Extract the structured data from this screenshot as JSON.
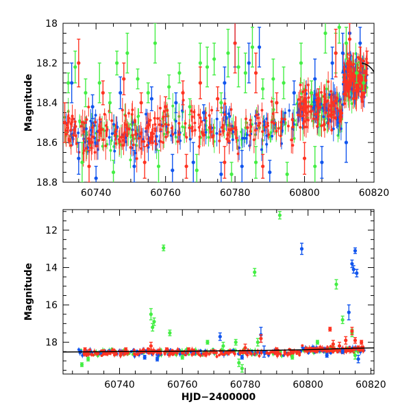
{
  "figure": {
    "x_axis_title": "HJD−2400000",
    "colors": {
      "green": "#44ee44",
      "blue": "#1155ee",
      "red": "#ff3322",
      "model": "#000000"
    }
  },
  "chart_data": [
    {
      "type": "scatter",
      "title": "",
      "xlabel": "",
      "ylabel": "Magnitude",
      "xlim": [
        60730.5,
        60820
      ],
      "ylim": [
        18.8,
        18.0
      ],
      "y_inverted": true,
      "grid": false,
      "x_ticks": [
        60740,
        60760,
        60780,
        60800,
        60820
      ],
      "x_tick_labels": [
        "60740",
        "60760",
        "60780",
        "60800",
        "60820"
      ],
      "y_ticks": [
        18.0,
        18.2,
        18.4,
        18.6,
        18.8
      ],
      "y_tick_labels": [
        "18",
        "18.2",
        "18.4",
        "18.6",
        "18.8"
      ],
      "baseline_segments": [
        {
          "x0": 60731,
          "x1": 60759,
          "y": 18.55
        },
        {
          "x0": 60759,
          "x1": 60798,
          "y": 18.52
        },
        {
          "x0": 60798,
          "x1": 60811,
          "y": 18.43
        },
        {
          "x0": 60811,
          "x1": 60818,
          "y": 18.28
        }
      ],
      "model_curve": [
        [
          60816.5,
          18.2
        ],
        [
          60817.5,
          18.205
        ],
        [
          60818.5,
          18.215
        ],
        [
          60819.3,
          18.228
        ],
        [
          60820,
          18.245
        ]
      ],
      "series": [
        {
          "color": "green",
          "points": [
            [
              60732,
              18.3,
              0.05
            ],
            [
              60734,
              18.22,
              0.08
            ],
            [
              60737,
              18.35,
              0.07
            ],
            [
              60741,
              18.3,
              0.1
            ],
            [
              60744,
              18.4,
              0.05
            ],
            [
              60746,
              18.2,
              0.06
            ],
            [
              60749,
              18.15,
              0.1
            ],
            [
              60752,
              18.28,
              0.05
            ],
            [
              60755,
              18.35,
              0.05
            ],
            [
              60757,
              18.1,
              0.1
            ],
            [
              60761,
              18.32,
              0.06
            ],
            [
              60764,
              18.25,
              0.05
            ],
            [
              60767,
              18.42,
              0.04
            ],
            [
              60770,
              18.2,
              0.1
            ],
            [
              60772,
              18.22,
              0.1
            ],
            [
              60774,
              18.18,
              0.08
            ],
            [
              60776,
              18.4,
              0.05
            ],
            [
              60778,
              18.15,
              0.12
            ],
            [
              60781,
              18.22,
              0.1
            ],
            [
              60783,
              18.25,
              0.1
            ],
            [
              60785,
              18.12,
              0.1
            ],
            [
              60788,
              18.33,
              0.05
            ],
            [
              60791,
              18.28,
              0.1
            ],
            [
              60794,
              18.3,
              0.08
            ],
            [
              60799,
              18.2,
              0.1
            ],
            [
              60802,
              18.35,
              0.06
            ],
            [
              60806,
              18.05,
              0.1
            ],
            [
              60809,
              18.15,
              0.1
            ],
            [
              60810,
              18.02,
              0.08
            ],
            [
              60812,
              18.1,
              0.08
            ],
            [
              60815,
              18.25,
              0.05
            ],
            [
              60817,
              18.3,
              0.04
            ],
            [
              60736,
              18.7,
              0.1
            ],
            [
              60745,
              18.75,
              0.06
            ],
            [
              60758,
              18.72,
              0.08
            ],
            [
              60769,
              18.74,
              0.08
            ],
            [
              60779,
              18.76,
              0.06
            ],
            [
              60786,
              18.7,
              0.08
            ],
            [
              60795,
              18.76,
              0.06
            ],
            [
              60803,
              18.72,
              0.1
            ]
          ]
        },
        {
          "color": "blue",
          "points": [
            [
              60733,
              18.3,
              0.1
            ],
            [
              60739,
              18.42,
              0.06
            ],
            [
              60747,
              18.35,
              0.08
            ],
            [
              60756,
              18.38,
              0.06
            ],
            [
              60763,
              18.4,
              0.05
            ],
            [
              60771,
              18.45,
              0.04
            ],
            [
              60777,
              18.3,
              0.08
            ],
            [
              60780,
              18.1,
              0.12
            ],
            [
              60784,
              18.2,
              0.1
            ],
            [
              60787,
              18.12,
              0.1
            ],
            [
              60797,
              18.35,
              0.06
            ],
            [
              60803,
              18.28,
              0.1
            ],
            [
              60808,
              18.2,
              0.08
            ],
            [
              60811,
              18.15,
              0.1
            ],
            [
              60813,
              18.05,
              0.1
            ],
            [
              60816,
              18.1,
              0.08
            ],
            [
              60735,
              18.68,
              0.08
            ],
            [
              60740,
              18.78,
              0.06
            ],
            [
              60751,
              18.72,
              0.08
            ],
            [
              60762,
              18.74,
              0.08
            ],
            [
              60768,
              18.7,
              0.1
            ],
            [
              60776,
              18.76,
              0.06
            ],
            [
              60782,
              18.72,
              0.08
            ],
            [
              60790,
              18.75,
              0.06
            ],
            [
              60805,
              18.7,
              0.08
            ],
            [
              60812,
              18.6,
              0.1
            ]
          ]
        },
        {
          "color": "red",
          "points": [
            [
              60731,
              18.5,
              0.1
            ],
            [
              60735,
              18.2,
              0.12
            ],
            [
              60742,
              18.35,
              0.06
            ],
            [
              60748,
              18.28,
              0.08
            ],
            [
              60753,
              18.4,
              0.05
            ],
            [
              60760,
              18.42,
              0.05
            ],
            [
              60765,
              18.35,
              0.06
            ],
            [
              60770,
              18.3,
              0.08
            ],
            [
              60775,
              18.38,
              0.06
            ],
            [
              60780,
              18.1,
              0.15
            ],
            [
              60786,
              18.25,
              0.1
            ],
            [
              60792,
              18.4,
              0.05
            ],
            [
              60799,
              18.42,
              0.05
            ],
            [
              60804,
              18.38,
              0.05
            ],
            [
              60809,
              18.15,
              0.12
            ],
            [
              60813,
              18.08,
              0.08
            ],
            [
              60816,
              18.18,
              0.06
            ],
            [
              60818,
              18.2,
              0.06
            ],
            [
              60738,
              18.72,
              0.08
            ],
            [
              60754,
              18.7,
              0.08
            ],
            [
              60766,
              18.72,
              0.06
            ],
            [
              60777,
              18.7,
              0.08
            ],
            [
              60788,
              18.72,
              0.06
            ],
            [
              60800,
              18.68,
              0.08
            ]
          ]
        }
      ]
    },
    {
      "type": "scatter",
      "title": "",
      "xlabel": "HJD−2400000",
      "ylabel": "Magnitude",
      "xlim": [
        60722,
        60821
      ],
      "ylim": [
        19.7,
        10.9
      ],
      "y_inverted": true,
      "grid": false,
      "x_ticks": [
        60740,
        60760,
        60780,
        60800,
        60820
      ],
      "x_tick_labels": [
        "60740",
        "60760",
        "60780",
        "60800",
        "60820"
      ],
      "y_ticks": [
        12,
        14,
        16,
        18
      ],
      "y_tick_labels": [
        "12",
        "14",
        "16",
        "18"
      ],
      "baseline_segments": [
        {
          "x0": 60727,
          "x1": 60759,
          "y": 18.55
        },
        {
          "x0": 60759,
          "x1": 60798,
          "y": 18.55
        },
        {
          "x0": 60798,
          "x1": 60818,
          "y": 18.4
        }
      ],
      "model_curve": [
        [
          60722,
          18.52
        ],
        [
          60740,
          18.5
        ],
        [
          60760,
          18.48
        ],
        [
          60780,
          18.45
        ],
        [
          60800,
          18.4
        ],
        [
          60815,
          18.32
        ],
        [
          60821,
          18.3
        ]
      ],
      "series": [
        {
          "color": "green",
          "points": [
            [
              60728,
              19.2,
              0.1
            ],
            [
              60730,
              18.9,
              0.1
            ],
            [
              60750,
              16.5,
              0.3
            ],
            [
              60750.5,
              17.2,
              0.2
            ],
            [
              60751,
              16.9,
              0.2
            ],
            [
              60754,
              12.95,
              0.15
            ],
            [
              60756,
              17.5,
              0.15
            ],
            [
              60773,
              18.2,
              0.2
            ],
            [
              60777,
              18.0,
              0.15
            ],
            [
              60778,
              19.1,
              0.2
            ],
            [
              60779,
              19.4,
              0.2
            ],
            [
              60783,
              14.25,
              0.2
            ],
            [
              60784,
              18.0,
              0.2
            ],
            [
              60791,
              11.2,
              0.2
            ],
            [
              60803,
              18.0,
              0.1
            ],
            [
              60809,
              14.9,
              0.25
            ],
            [
              60811,
              16.8,
              0.2
            ],
            [
              60814,
              17.5,
              0.2
            ],
            [
              60815,
              18.7,
              0.2
            ],
            [
              60760,
              18.8,
              0.1
            ],
            [
              60768,
              18.0,
              0.1
            ],
            [
              60795,
              18.8,
              0.1
            ]
          ]
        },
        {
          "color": "blue",
          "points": [
            [
              60748,
              18.8,
              0.1
            ],
            [
              60752,
              18.9,
              0.1
            ],
            [
              60772,
              17.7,
              0.2
            ],
            [
              60779,
              18.8,
              0.1
            ],
            [
              60785,
              17.6,
              0.4
            ],
            [
              60786,
              18.5,
              0.3
            ],
            [
              60798,
              13.0,
              0.3
            ],
            [
              60806,
              18.7,
              0.1
            ],
            [
              60811,
              18.5,
              0.1
            ],
            [
              60813,
              16.4,
              0.4
            ],
            [
              60814,
              13.8,
              0.2
            ],
            [
              60814.5,
              14.1,
              0.2
            ],
            [
              60815,
              13.1,
              0.15
            ],
            [
              60815.5,
              14.3,
              0.2
            ],
            [
              60816,
              18.9,
              0.2
            ]
          ]
        },
        {
          "color": "red",
          "points": [
            [
              60729,
              18.4,
              0.1
            ],
            [
              60735,
              18.5,
              0.1
            ],
            [
              60742,
              18.4,
              0.1
            ],
            [
              60750,
              18.2,
              0.2
            ],
            [
              60755,
              18.4,
              0.1
            ],
            [
              60762,
              18.4,
              0.1
            ],
            [
              60770,
              18.5,
              0.1
            ],
            [
              60780,
              18.3,
              0.2
            ],
            [
              60785,
              17.8,
              0.2
            ],
            [
              60790,
              18.4,
              0.1
            ],
            [
              60795,
              18.5,
              0.1
            ],
            [
              60807,
              17.3,
              0.1
            ],
            [
              60808,
              18.1,
              0.2
            ],
            [
              60810,
              18.2,
              0.2
            ],
            [
              60812,
              17.9,
              0.2
            ],
            [
              60814,
              17.4,
              0.2
            ],
            [
              60815,
              17.9,
              0.15
            ],
            [
              60816,
              18.3,
              0.1
            ],
            [
              60817,
              18.0,
              0.1
            ]
          ]
        }
      ]
    }
  ]
}
